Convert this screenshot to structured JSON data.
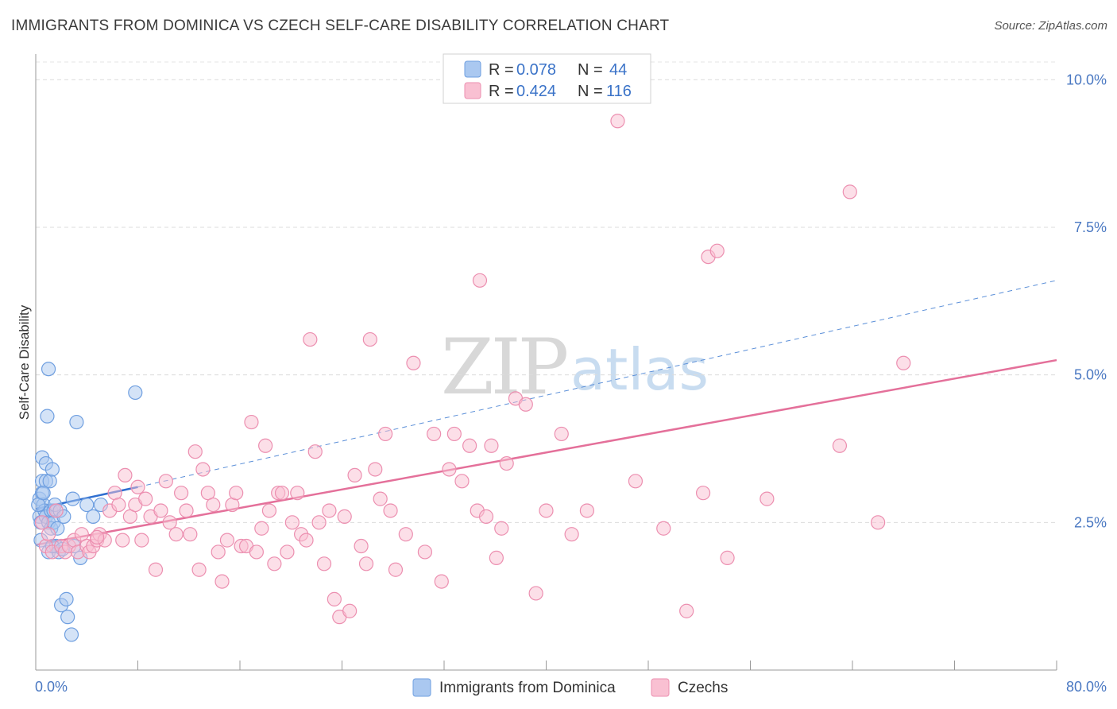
{
  "header": {
    "title": "IMMIGRANTS FROM DOMINICA VS CZECH SELF-CARE DISABILITY CORRELATION CHART",
    "source": "Source: ZipAtlas.com"
  },
  "watermark": {
    "zip": "ZIP",
    "atlas": "atlas"
  },
  "legend_top": {
    "rows": [
      {
        "r_label": "R =",
        "r_value": "0.078",
        "n_label": "N =",
        "n_value": "44",
        "color": "#aac8f0",
        "stroke": "#6f9fe0"
      },
      {
        "r_label": "R =",
        "r_value": "0.424",
        "n_label": "N =",
        "n_value": "116",
        "color": "#f9c0d2",
        "stroke": "#ec8fb0"
      }
    ]
  },
  "legend_bottom": {
    "items": [
      {
        "label": "Immigrants from Dominica",
        "color": "#aac8f0",
        "stroke": "#6f9fe0"
      },
      {
        "label": "Czechs",
        "color": "#f9c0d2",
        "stroke": "#ec8fb0"
      }
    ]
  },
  "chart_data": {
    "type": "scatter",
    "title": "IMMIGRANTS FROM DOMINICA VS CZECH SELF-CARE DISABILITY CORRELATION CHART",
    "xlabel": "",
    "ylabel": "Self-Care Disability",
    "xlim": [
      0,
      80
    ],
    "ylim": [
      0,
      10.3
    ],
    "x_tick_labels": [
      "0.0%",
      "80.0%"
    ],
    "y_ticks": [
      2.5,
      5.0,
      7.5,
      10.0
    ],
    "y_tick_labels": [
      "2.5%",
      "5.0%",
      "7.5%",
      "10.0%"
    ],
    "grid": true,
    "legend": "top-center",
    "series": [
      {
        "name": "Immigrants from Dominica",
        "color": "#6f9fe0",
        "fill": "#aac8f0",
        "trend": {
          "x0": 0,
          "y0": 2.73,
          "x1": 8,
          "y1": 3.1,
          "solid_until": 8,
          "dashed_to_x": 80,
          "dashed_to_y": 6.6
        },
        "points": [
          [
            0.3,
            2.9
          ],
          [
            0.3,
            2.6
          ],
          [
            0.4,
            2.5
          ],
          [
            0.5,
            3.2
          ],
          [
            0.5,
            3.0
          ],
          [
            0.5,
            3.6
          ],
          [
            0.6,
            2.8
          ],
          [
            0.7,
            2.7
          ],
          [
            0.8,
            3.5
          ],
          [
            0.8,
            3.2
          ],
          [
            0.8,
            2.6
          ],
          [
            0.9,
            4.3
          ],
          [
            1.0,
            5.1
          ],
          [
            1.0,
            2.5
          ],
          [
            1.0,
            2.0
          ],
          [
            1.1,
            3.2
          ],
          [
            1.2,
            2.7
          ],
          [
            1.2,
            2.4
          ],
          [
            1.3,
            3.4
          ],
          [
            1.4,
            2.7
          ],
          [
            1.4,
            2.5
          ],
          [
            1.5,
            2.8
          ],
          [
            1.6,
            2.1
          ],
          [
            1.7,
            2.4
          ],
          [
            1.8,
            2.0
          ],
          [
            1.9,
            2.7
          ],
          [
            2.0,
            1.1
          ],
          [
            2.2,
            2.6
          ],
          [
            2.4,
            1.2
          ],
          [
            2.5,
            0.9
          ],
          [
            2.8,
            0.6
          ],
          [
            2.9,
            2.9
          ],
          [
            3.0,
            2.1
          ],
          [
            3.2,
            4.2
          ],
          [
            3.5,
            1.9
          ],
          [
            4.0,
            2.8
          ],
          [
            4.5,
            2.6
          ],
          [
            7.8,
            4.7
          ],
          [
            0.2,
            2.8
          ],
          [
            0.4,
            2.2
          ],
          [
            0.6,
            3.0
          ],
          [
            1.3,
            2.1
          ],
          [
            2.1,
            2.05
          ],
          [
            5.1,
            2.8
          ]
        ]
      },
      {
        "name": "Czechs",
        "color": "#ec8fb0",
        "fill": "#f9c0d2",
        "trend": {
          "x0": 0,
          "y0": 2.12,
          "x1": 80,
          "y1": 5.25
        },
        "points": [
          [
            0.5,
            2.5
          ],
          [
            0.8,
            2.1
          ],
          [
            1.0,
            2.3
          ],
          [
            1.3,
            2.0
          ],
          [
            1.6,
            2.7
          ],
          [
            2.0,
            2.1
          ],
          [
            2.3,
            2.0
          ],
          [
            2.6,
            2.1
          ],
          [
            3.0,
            2.2
          ],
          [
            3.3,
            2.0
          ],
          [
            3.6,
            2.3
          ],
          [
            4.0,
            2.1
          ],
          [
            4.2,
            2.0
          ],
          [
            4.5,
            2.1
          ],
          [
            4.8,
            2.2
          ],
          [
            5.0,
            2.3
          ],
          [
            5.4,
            2.2
          ],
          [
            5.8,
            2.7
          ],
          [
            6.2,
            3.0
          ],
          [
            6.5,
            2.8
          ],
          [
            6.8,
            2.2
          ],
          [
            7.0,
            3.3
          ],
          [
            7.4,
            2.6
          ],
          [
            7.8,
            2.8
          ],
          [
            8.0,
            3.1
          ],
          [
            8.3,
            2.2
          ],
          [
            8.6,
            2.9
          ],
          [
            9.0,
            2.6
          ],
          [
            9.4,
            1.7
          ],
          [
            9.8,
            2.7
          ],
          [
            10.2,
            3.2
          ],
          [
            10.5,
            2.5
          ],
          [
            11.0,
            2.3
          ],
          [
            11.4,
            3.0
          ],
          [
            11.8,
            2.7
          ],
          [
            12.1,
            2.3
          ],
          [
            12.5,
            3.7
          ],
          [
            12.8,
            1.7
          ],
          [
            13.1,
            3.4
          ],
          [
            13.5,
            3.0
          ],
          [
            13.9,
            2.8
          ],
          [
            14.3,
            2.0
          ],
          [
            14.6,
            1.5
          ],
          [
            15.0,
            2.2
          ],
          [
            15.4,
            2.8
          ],
          [
            15.7,
            3.0
          ],
          [
            16.1,
            2.1
          ],
          [
            16.5,
            2.1
          ],
          [
            16.9,
            4.2
          ],
          [
            17.3,
            2.0
          ],
          [
            17.7,
            2.4
          ],
          [
            18.0,
            3.8
          ],
          [
            18.3,
            2.7
          ],
          [
            18.7,
            1.8
          ],
          [
            19.0,
            3.0
          ],
          [
            19.3,
            3.0
          ],
          [
            19.7,
            2.0
          ],
          [
            20.1,
            2.5
          ],
          [
            20.5,
            3.0
          ],
          [
            20.8,
            2.3
          ],
          [
            21.2,
            2.2
          ],
          [
            21.5,
            5.6
          ],
          [
            21.9,
            3.7
          ],
          [
            22.2,
            2.5
          ],
          [
            22.6,
            1.8
          ],
          [
            23.0,
            2.7
          ],
          [
            23.4,
            1.2
          ],
          [
            23.8,
            0.9
          ],
          [
            24.2,
            2.6
          ],
          [
            24.6,
            1.0
          ],
          [
            25.0,
            3.3
          ],
          [
            25.5,
            2.1
          ],
          [
            25.9,
            1.8
          ],
          [
            26.2,
            5.6
          ],
          [
            26.6,
            3.4
          ],
          [
            27.0,
            2.9
          ],
          [
            27.4,
            4.0
          ],
          [
            27.8,
            2.7
          ],
          [
            28.2,
            1.7
          ],
          [
            29.0,
            2.3
          ],
          [
            29.6,
            5.2
          ],
          [
            30.5,
            2.0
          ],
          [
            31.2,
            4.0
          ],
          [
            31.8,
            1.5
          ],
          [
            32.4,
            3.4
          ],
          [
            32.8,
            4.0
          ],
          [
            33.4,
            3.2
          ],
          [
            34.0,
            3.8
          ],
          [
            34.6,
            2.7
          ],
          [
            34.8,
            6.6
          ],
          [
            35.3,
            2.6
          ],
          [
            35.7,
            3.8
          ],
          [
            36.1,
            1.9
          ],
          [
            36.5,
            2.4
          ],
          [
            36.9,
            3.5
          ],
          [
            37.6,
            4.6
          ],
          [
            38.4,
            4.5
          ],
          [
            39.2,
            1.3
          ],
          [
            40.0,
            2.7
          ],
          [
            41.2,
            4.0
          ],
          [
            42.0,
            2.3
          ],
          [
            43.2,
            2.7
          ],
          [
            45.6,
            9.3
          ],
          [
            47.0,
            3.2
          ],
          [
            49.2,
            2.4
          ],
          [
            51.0,
            1.0
          ],
          [
            52.3,
            3.0
          ],
          [
            52.7,
            7.0
          ],
          [
            53.4,
            7.1
          ],
          [
            54.2,
            1.9
          ],
          [
            57.3,
            2.9
          ],
          [
            63.0,
            3.8
          ],
          [
            63.8,
            8.1
          ],
          [
            66.0,
            2.5
          ],
          [
            68.0,
            5.2
          ],
          [
            4.8,
            2.25
          ]
        ]
      }
    ]
  }
}
